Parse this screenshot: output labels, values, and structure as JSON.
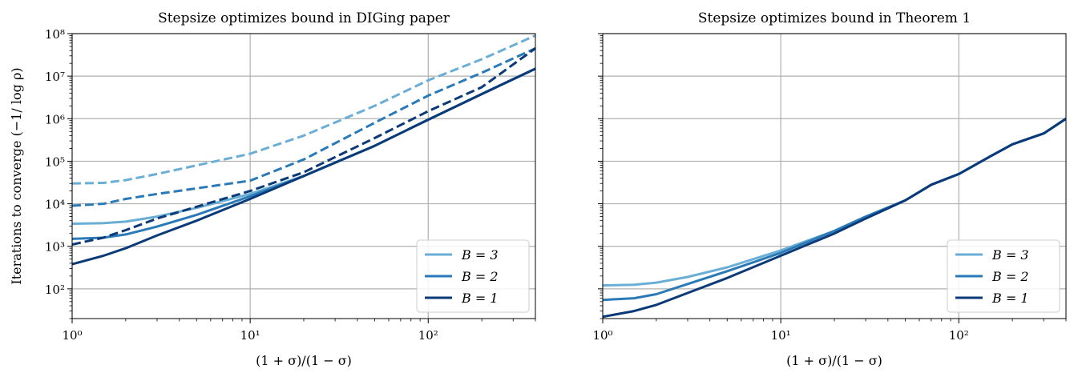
{
  "chart_data": [
    {
      "type": "line",
      "title": "Stepsize optimizes bound in DIGing paper",
      "xlabel": "(1 + σ)/(1 − σ)",
      "ylabel": "Iterations to converge (−1/ log ρ)",
      "x_scale": "log",
      "y_scale": "log",
      "xlim": [
        1,
        400
      ],
      "ylim": [
        20,
        100000000
      ],
      "x_tick_labels": [
        "10⁰",
        "10¹",
        "10²"
      ],
      "y_tick_labels": [
        "10²",
        "10³",
        "10⁴",
        "10⁵",
        "10⁶",
        "10⁷",
        "10⁸"
      ],
      "grid": true,
      "legend_position": "lower-right",
      "legend": [
        "B = 3",
        "B = 2",
        "B = 1"
      ],
      "series": [
        {
          "name": "B = 3",
          "style": "solid",
          "color": "#6aaed6",
          "x": [
            1,
            1.5,
            2,
            3,
            5,
            10,
            20,
            50,
            100,
            200,
            400
          ],
          "y": [
            3400,
            3500,
            3800,
            5000,
            8000,
            17000,
            45000,
            230000,
            950000,
            3800000,
            15000000
          ]
        },
        {
          "name": "B = 2",
          "style": "solid",
          "color": "#2a7ab8",
          "x": [
            1,
            1.5,
            2,
            3,
            5,
            10,
            20,
            50,
            100,
            200,
            400
          ],
          "y": [
            1500,
            1600,
            1900,
            2900,
            5500,
            15000,
            45000,
            230000,
            950000,
            3800000,
            15000000
          ]
        },
        {
          "name": "B = 1",
          "style": "solid",
          "color": "#0b3a78",
          "x": [
            1,
            1.5,
            2,
            3,
            5,
            10,
            20,
            50,
            100,
            200,
            400
          ],
          "y": [
            380,
            600,
            900,
            1800,
            4000,
            13000,
            45000,
            230000,
            950000,
            3800000,
            15000000
          ]
        },
        {
          "style": "dashed",
          "color": "#6aaed6",
          "x": [
            1,
            1.5,
            2,
            3,
            5,
            10,
            20,
            50,
            100,
            200,
            400
          ],
          "y": [
            30000,
            31000,
            36000,
            50000,
            80000,
            150000,
            400000,
            2000000,
            8000000,
            25000000,
            90000000
          ]
        },
        {
          "style": "dashed",
          "color": "#2a7ab8",
          "x": [
            1,
            1.5,
            2,
            3,
            5,
            10,
            20,
            50,
            100,
            200,
            400
          ],
          "y": [
            9000,
            10000,
            13000,
            17000,
            23000,
            35000,
            110000,
            800000,
            3500000,
            12000000,
            45000000
          ]
        },
        {
          "style": "dashed",
          "color": "#0b3a78",
          "x": [
            1,
            1.5,
            2,
            3,
            5,
            10,
            20,
            50,
            100,
            200,
            400
          ],
          "y": [
            1100,
            1600,
            2400,
            4500,
            8500,
            20000,
            55000,
            350000,
            1500000,
            5500000,
            45000000
          ]
        }
      ]
    },
    {
      "type": "line",
      "title": "Stepsize optimizes bound in Theorem 1",
      "xlabel": "(1 + σ)/(1 − σ)",
      "x_scale": "log",
      "y_scale": "log",
      "xlim": [
        1,
        400
      ],
      "ylim": [
        20,
        100000000
      ],
      "x_tick_labels": [
        "10⁰",
        "10¹",
        "10²"
      ],
      "grid": true,
      "legend_position": "lower-right",
      "legend": [
        "B = 3",
        "B = 2",
        "B = 1"
      ],
      "series": [
        {
          "name": "B = 3",
          "style": "solid",
          "color": "#6aaed6",
          "x": [
            1,
            1.5,
            2,
            3,
            5,
            10,
            20,
            30,
            50,
            70,
            100,
            150,
            200,
            300,
            400
          ],
          "y": [
            120,
            125,
            140,
            190,
            320,
            800,
            2300,
            5000,
            12000,
            28000,
            50000,
            130000,
            250000,
            450000,
            1000000
          ]
        },
        {
          "name": "B = 2",
          "style": "solid",
          "color": "#2a7ab8",
          "x": [
            1,
            1.5,
            2,
            3,
            5,
            10,
            20,
            30,
            50,
            70,
            100,
            150,
            200,
            300,
            400
          ],
          "y": [
            55,
            60,
            75,
            130,
            260,
            700,
            2300,
            5000,
            12000,
            28000,
            50000,
            130000,
            250000,
            450000,
            1000000
          ]
        },
        {
          "name": "B = 1",
          "style": "solid",
          "color": "#0b3a78",
          "x": [
            1,
            1.5,
            2,
            3,
            5,
            10,
            20,
            30,
            50,
            70,
            100,
            150,
            200,
            300,
            400
          ],
          "y": [
            22,
            30,
            42,
            80,
            180,
            600,
            2000,
            4500,
            12000,
            28000,
            50000,
            130000,
            250000,
            450000,
            1000000
          ]
        }
      ]
    }
  ]
}
